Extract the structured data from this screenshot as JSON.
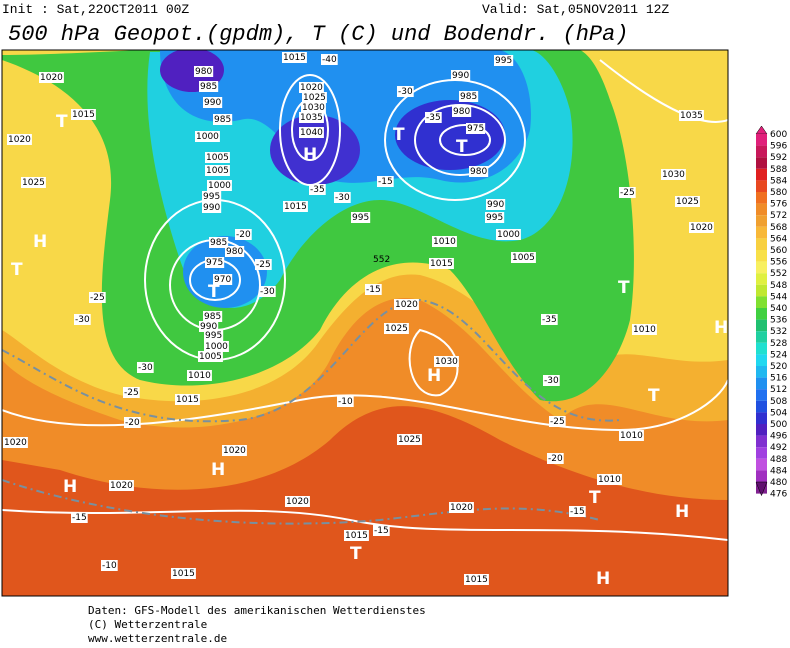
{
  "header": {
    "init": "Init : Sat,22OCT2011 00Z",
    "valid": "Valid: Sat,05NOV2011 12Z",
    "title": "500 hPa Geopot.(gpdm), T (C) und Bodendr. (hPa)"
  },
  "colorbar": {
    "levels": [
      600,
      596,
      592,
      588,
      584,
      580,
      576,
      572,
      568,
      564,
      560,
      556,
      552,
      548,
      544,
      540,
      536,
      532,
      528,
      524,
      520,
      516,
      512,
      508,
      504,
      500,
      496,
      492,
      488,
      484,
      480,
      476
    ],
    "colors": [
      "#e0207a",
      "#c8185a",
      "#b01040",
      "#e02020",
      "#e84820",
      "#f07020",
      "#f08c28",
      "#f0a030",
      "#f8b838",
      "#f8d040",
      "#f8e048",
      "#f8f060",
      "#e0f040",
      "#c0e830",
      "#80e030",
      "#40d040",
      "#20c070",
      "#20d0a0",
      "#20e0d0",
      "#20d8f0",
      "#20b8f0",
      "#2090f0",
      "#2070f0",
      "#2050e0",
      "#3030d0",
      "#5020c0",
      "#8030d0",
      "#a040e0",
      "#c050e0",
      "#a030c0",
      "#802090",
      "#601070"
    ]
  },
  "map": {
    "pressure_labels": [
      "1020",
      "1015",
      "1020",
      "1025",
      "980",
      "985",
      "990",
      "985",
      "1000",
      "1005",
      "1005",
      "1000",
      "995",
      "990",
      "985",
      "980",
      "975",
      "970",
      "985",
      "990",
      "995",
      "1000",
      "1005",
      "1010",
      "1015",
      "1015",
      "1020",
      "1025",
      "1030",
      "1035",
      "1040",
      "1015",
      "995",
      "990",
      "985",
      "980",
      "975",
      "980",
      "995",
      "990",
      "995",
      "1000",
      "1010",
      "1015",
      "1005",
      "1020",
      "1025",
      "1030",
      "1035",
      "1030",
      "1025",
      "1020",
      "1010",
      "1010",
      "1010",
      "1025",
      "1020",
      "1020",
      "1020",
      "1020",
      "1020",
      "1015",
      "1015",
      "1015"
    ],
    "temperature_labels": [
      "-40",
      "-30",
      "-35",
      "-35",
      "-30",
      "-15",
      "-20",
      "-25",
      "-30",
      "-25",
      "-30",
      "-30",
      "-25",
      "-20",
      "-10",
      "-15",
      "-35",
      "-30",
      "-25",
      "-20",
      "-15",
      "-15",
      "-10",
      "-15",
      "-25"
    ],
    "contour_labels": [
      "552"
    ],
    "center_labels": [
      "H",
      "T",
      "T",
      "T",
      "H",
      "T",
      "H",
      "T",
      "H",
      "T",
      "H",
      "H",
      "T",
      "H",
      "T",
      "H",
      "T"
    ]
  },
  "footer": {
    "source": "Daten: GFS-Modell des amerikanischen Wetterdienstes",
    "copyright": "(C) Wetterzentrale",
    "url": "www.wetterzentrale.de"
  }
}
